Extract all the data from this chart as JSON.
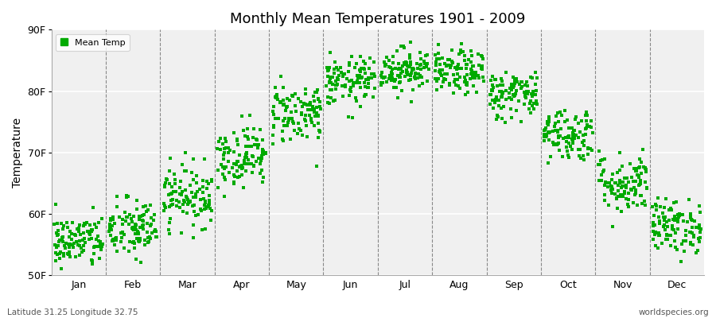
{
  "title": "Monthly Mean Temperatures 1901 - 2009",
  "ylabel": "Temperature",
  "ylim": [
    50,
    90
  ],
  "yticks": [
    50,
    60,
    70,
    80,
    90
  ],
  "ytick_labels": [
    "50F",
    "60F",
    "70F",
    "80F",
    "90F"
  ],
  "months": [
    "Jan",
    "Feb",
    "Mar",
    "Apr",
    "May",
    "Jun",
    "Jul",
    "Aug",
    "Sep",
    "Oct",
    "Nov",
    "Dec"
  ],
  "n_years": 109,
  "dot_color": "#00AA00",
  "dot_size": 6,
  "background_color": "#ffffff",
  "plot_bg_color": "#f0f0f0",
  "legend_label": "Mean Temp",
  "footer_left": "Latitude 31.25 Longitude 32.75",
  "footer_right": "worldspecies.org",
  "mean_temps_f": [
    55.5,
    57.5,
    63.0,
    69.5,
    76.5,
    81.5,
    83.5,
    83.0,
    79.5,
    73.0,
    65.0,
    58.0
  ],
  "std_temps_f": [
    2.2,
    2.5,
    2.5,
    2.5,
    2.5,
    2.0,
    1.8,
    1.8,
    2.0,
    2.2,
    2.5,
    2.2
  ]
}
